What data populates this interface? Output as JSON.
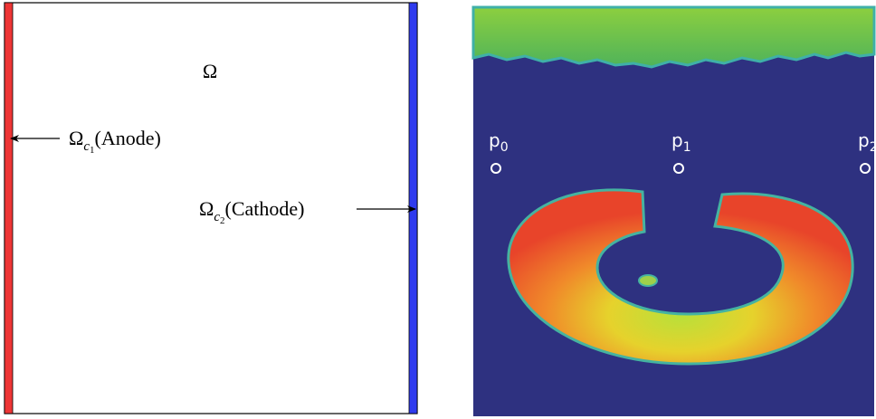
{
  "left_panel": {
    "domain_label": "Ω",
    "anode_label": {
      "symbol": "Ω",
      "subscript": "c",
      "sub_subscript": "1",
      "text": "(Anode)"
    },
    "cathode_label": {
      "symbol": "Ω",
      "subscript": "c",
      "sub_subscript": "2",
      "text": "(Cathode)"
    }
  },
  "right_panel": {
    "probes": [
      {
        "letter": "p",
        "index": "0"
      },
      {
        "letter": "p",
        "index": "1"
      },
      {
        "letter": "p",
        "index": "2"
      }
    ]
  }
}
